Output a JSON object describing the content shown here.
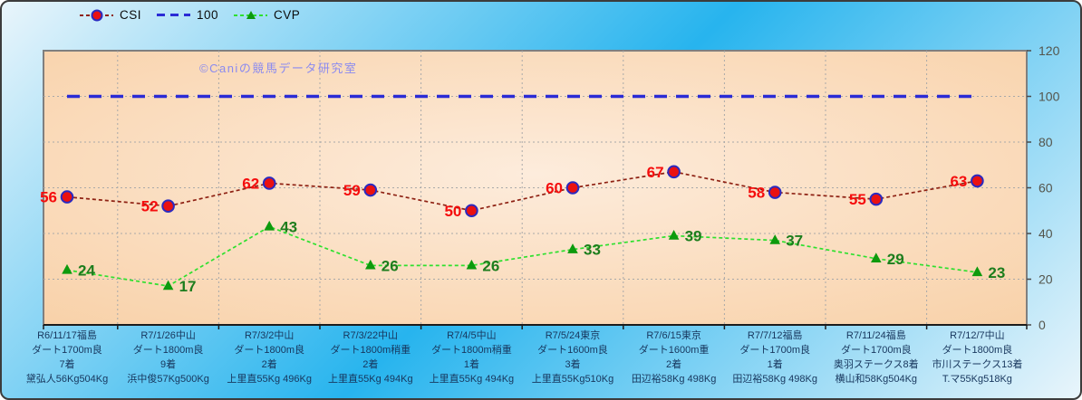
{
  "chart_data": {
    "type": "line",
    "watermark": "©Caniの競馬データ研究室",
    "legend_position": "top",
    "grid": true,
    "categories": [
      [
        "R6/11/17福島",
        "ダート1700m良",
        "7着",
        "黛弘人56Kg504Kg"
      ],
      [
        "R7/1/26中山",
        "ダート1800m良",
        "9着",
        "浜中俊57Kg500Kg"
      ],
      [
        "R7/3/2中山",
        "ダート1800m良",
        "2着",
        "上里直55Kg 496Kg"
      ],
      [
        "R7/3/22中山",
        "ダート1800m稍重",
        "2着",
        "上里直55Kg 494Kg"
      ],
      [
        "R7/4/5中山",
        "ダート1800m稍重",
        "1着",
        "上里直55Kg 494Kg"
      ],
      [
        "R7/5/24東京",
        "ダート1600m良",
        "3着",
        "上里直55Kg510Kg"
      ],
      [
        "R7/6/15東京",
        "ダート1600m重",
        "2着",
        "田辺裕58Kg 498Kg"
      ],
      [
        "R7/7/12福島",
        "ダート1700m良",
        "1着",
        "田辺裕58Kg 498Kg"
      ],
      [
        "R7/11/24福島",
        "ダート1700m良",
        "奥羽ステークス8着",
        "横山和58Kg504Kg"
      ],
      [
        "R7/12/7中山",
        "ダート1800m良",
        "市川ステークス13着",
        "T.マ55Kg518Kg"
      ]
    ],
    "series": [
      {
        "name": "CSI",
        "type": "line",
        "marker": "circle",
        "label_side": "left",
        "line_color": "#8e2113",
        "marker_fill": "#ea1111",
        "marker_stroke": "#2a2ac0",
        "label_color": "#f50d0d",
        "values": [
          56,
          52,
          62,
          59,
          50,
          60,
          67,
          58,
          55,
          63
        ]
      },
      {
        "name": "100",
        "type": "ref-line",
        "marker": "none",
        "line_color": "#2b2bd5",
        "values": [
          100,
          100,
          100,
          100,
          100,
          100,
          100,
          100,
          100,
          100
        ]
      },
      {
        "name": "CVP",
        "type": "line",
        "marker": "triangle",
        "label_side": "right",
        "line_color": "#2ee02e",
        "marker_fill": "#0d9a0d",
        "label_color": "#1d7d1d",
        "values": [
          24,
          17,
          43,
          26,
          26,
          33,
          39,
          37,
          29,
          23
        ]
      }
    ],
    "y_axis": {
      "side": "right",
      "min": 0,
      "max": 120,
      "step": 20,
      "ticks": [
        0,
        20,
        40,
        60,
        80,
        100,
        120
      ]
    },
    "x_axis": {
      "labels_color": "#17365d"
    }
  },
  "colors": {
    "background_light": "#e9f5fb",
    "background_accent": "#27b4ee",
    "plot_center": "#fdecdc",
    "plot_edge": "#f8d0a6",
    "plot_border": "#7f7f7f",
    "grid": "#a9a9a9",
    "axis": "#1c1c1c",
    "tick_label": "#54554c",
    "watermark": "#8a8af0"
  }
}
